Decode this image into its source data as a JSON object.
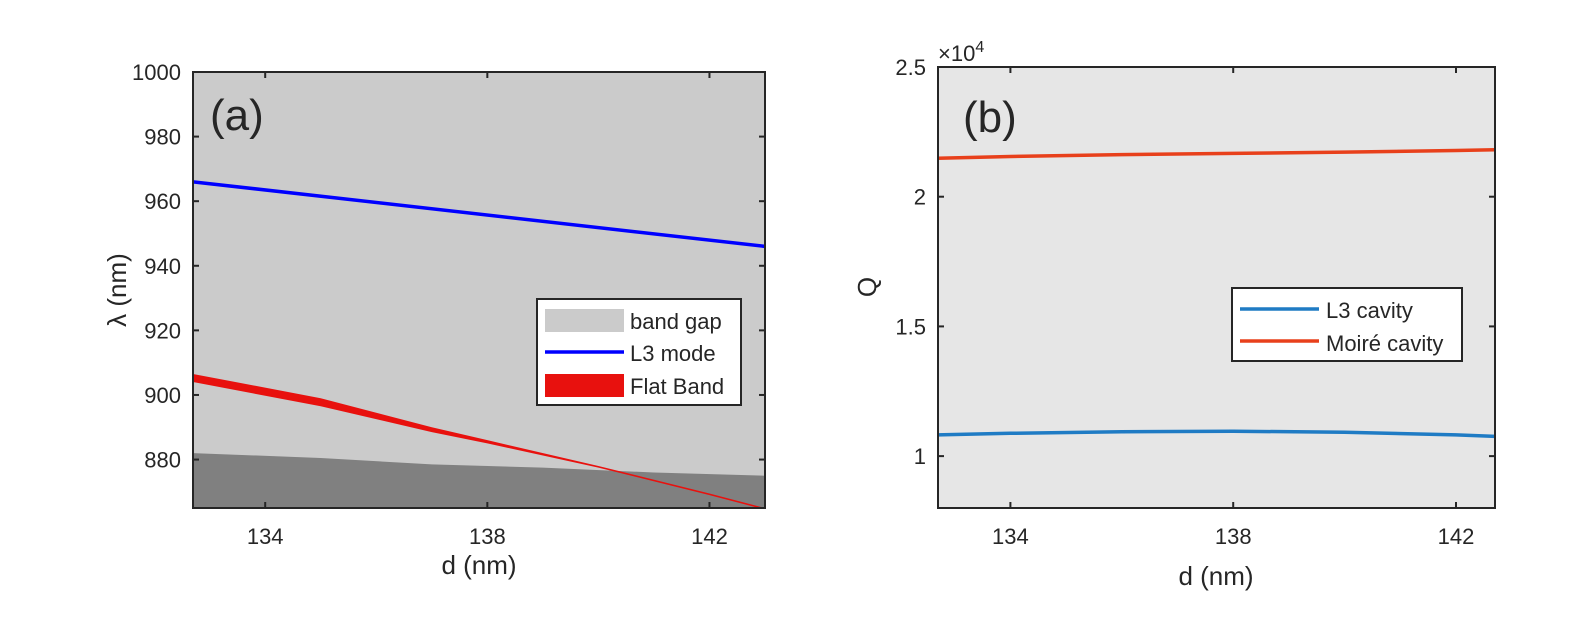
{
  "chart_data": [
    {
      "panel": "a",
      "type": "line",
      "panel_label": "(a)",
      "xlabel": "d (nm)",
      "ylabel": "λ (nm)",
      "xlim": [
        132.7,
        143.0
      ],
      "ylim": [
        865,
        1000
      ],
      "xticks": [
        134,
        138,
        142
      ],
      "xtick_labels": [
        "134",
        "138",
        "142"
      ],
      "yticks": [
        880,
        900,
        920,
        940,
        960,
        980,
        1000
      ],
      "ytick_labels": [
        "880",
        "900",
        "920",
        "940",
        "960",
        "980",
        "1000"
      ],
      "colors": {
        "band_gap": "#cbcbcb",
        "below_gap": "#808080",
        "l3_mode": "#0000ff",
        "flat_band": "#e8110e"
      },
      "series": [
        {
          "name": "band gap",
          "kind": "area",
          "lower_edge_x": [
            132.7,
            135.0,
            137.0,
            139.0,
            141.0,
            143.0
          ],
          "lower_edge_y": [
            882,
            880.5,
            878.5,
            877.5,
            876,
            875
          ]
        },
        {
          "name": "L3 mode",
          "kind": "line",
          "x": [
            132.7,
            143.0
          ],
          "y": [
            966,
            946
          ]
        },
        {
          "name": "Flat Band",
          "kind": "band",
          "x": [
            132.7,
            135.0,
            137.0,
            138.0,
            140.0,
            142.0,
            143.0
          ],
          "upper": [
            906.5,
            899,
            890,
            886,
            878,
            869.5,
            865
          ],
          "lower": [
            904,
            896.5,
            888.5,
            885,
            877.5,
            869,
            864.5
          ]
        }
      ],
      "legend": {
        "placement": "center-right",
        "entries": [
          "band gap",
          "L3 mode",
          "Flat Band"
        ]
      }
    },
    {
      "panel": "b",
      "type": "line",
      "panel_label": "(b)",
      "xlabel": "d (nm)",
      "ylabel": "Q",
      "xlim": [
        132.7,
        142.7
      ],
      "ylim": [
        0.8,
        2.5
      ],
      "y_multiplier": "×10",
      "y_multiplier_exp": "4",
      "xticks": [
        134,
        138,
        142
      ],
      "xtick_labels": [
        "134",
        "138",
        "142"
      ],
      "yticks": [
        1,
        1.5,
        2,
        2.5
      ],
      "ytick_labels": [
        "1",
        "1.5",
        "2",
        "2.5"
      ],
      "colors": {
        "background": "#e6e6e6",
        "l3_cavity": "#1f7bc4",
        "moire_cavity": "#e8401b"
      },
      "series": [
        {
          "name": "L3 cavity",
          "x": [
            132.7,
            134,
            136,
            138,
            140,
            142,
            142.7
          ],
          "y": [
            1.082,
            1.088,
            1.094,
            1.096,
            1.092,
            1.082,
            1.076
          ]
        },
        {
          "name": "Moiré cavity",
          "x": [
            132.7,
            134,
            136,
            138,
            140,
            142,
            142.7
          ],
          "y": [
            2.148,
            2.155,
            2.162,
            2.167,
            2.172,
            2.178,
            2.181
          ]
        }
      ],
      "legend": {
        "placement": "center-right",
        "entries": [
          "L3 cavity",
          "Moiré cavity"
        ]
      }
    }
  ]
}
